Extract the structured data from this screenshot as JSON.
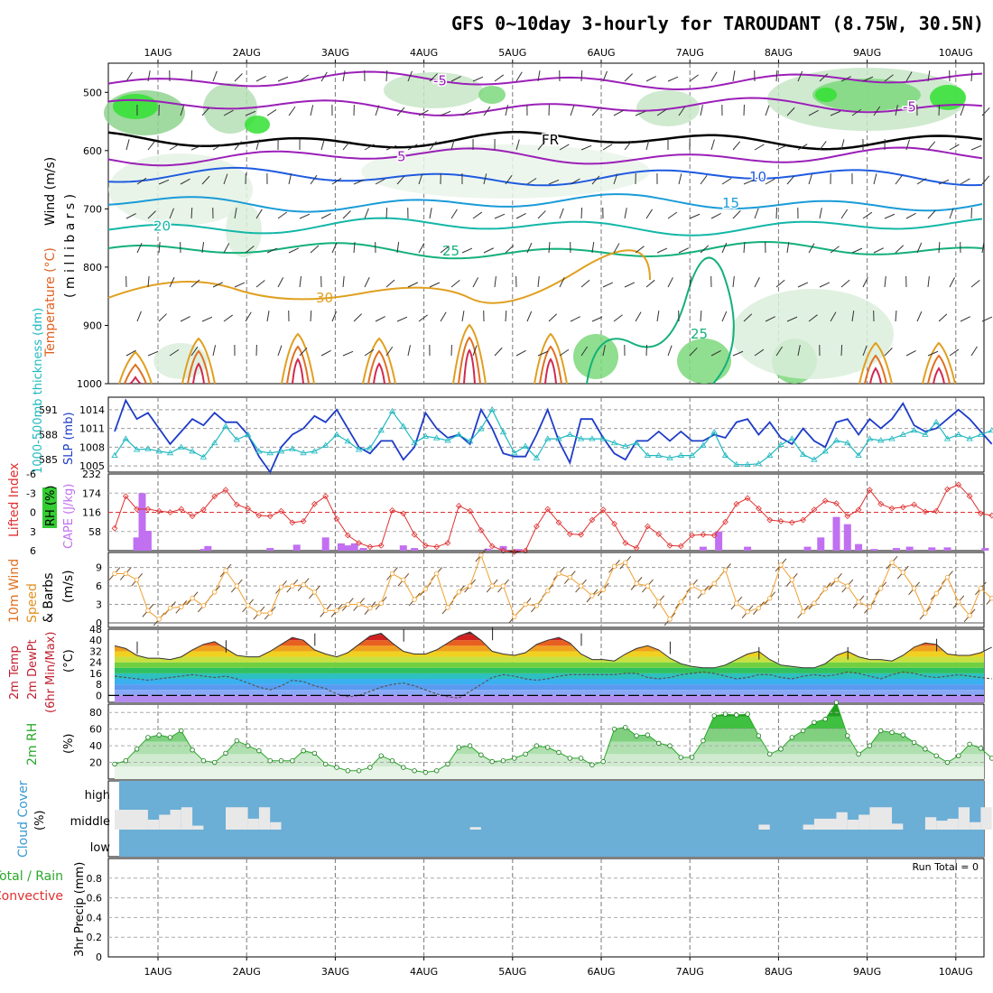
{
  "title": "GFS 0~10day 3-hourly for TAROUDANT (8.75W, 30.5N)",
  "date_labels": [
    "1AUG",
    "2AUG",
    "3AUG",
    "4AUG",
    "5AUG",
    "6AUG",
    "7AUG",
    "8AUG",
    "9AUG",
    "10AUG"
  ],
  "run_total": "Run Total = 0",
  "colors": {
    "temp_500": "#9b1fb8",
    "temp_600": "#1f5be0",
    "temp_700": "#1a9bd8",
    "temp_750": "#14b7a8",
    "temp_780": "#14b07a",
    "temp_hot": "#e0a020",
    "slp": "#1e3cc8",
    "thickness": "#1fb8c0",
    "li": "#e03030",
    "cape": "#c070f0",
    "wind": "#f0a030",
    "rh2m": "#2aa82a",
    "dew": "#888888",
    "cloud": "#6baed6"
  },
  "panel_labels": {
    "upper": {
      "wind": "Wind (m/s)",
      "temperature": "Temperature (°C)",
      "rh": "RH (%)",
      "units": "( m i l l i b a r s )"
    },
    "slp": {
      "thickness": "1000-500mb thickness (dm)",
      "slp": "SLP (mb)"
    },
    "cape": {
      "li": "Lifted Index",
      "cape": "CAPE (J/kg)"
    },
    "wind10": {
      "line1": "10m Wind",
      "line2": "Speed",
      "line3": "& Barbs",
      "units": "(m/s)"
    },
    "temp2m": {
      "line1": "2m Temp",
      "line2": "2m DewPt",
      "line3": "(6hr Min/Max)",
      "units": "(°C)"
    },
    "rh2m": {
      "line1": "2m RH",
      "units": "(%)"
    },
    "cloud": {
      "line1": "Cloud Cover",
      "units": "(%)"
    },
    "precip": {
      "line1": "Total / Rain",
      "line2": "Convective",
      "line3": "3hr Precip (mm)"
    }
  },
  "contour_labels": {
    "freezing": "FR",
    "t_minus5": "-5",
    "t5": "5",
    "t10": "10",
    "t15": "15",
    "t20": "20",
    "t25": "25",
    "t30": "30"
  },
  "axes": {
    "pressure_ticks": [
      "500",
      "600",
      "700",
      "800",
      "900",
      "1000"
    ],
    "slp_left_ticks": [
      "591",
      "588",
      "585"
    ],
    "slp_right_ticks": [
      "1014",
      "1011",
      "1008",
      "1005"
    ],
    "cape_left_ticks": [
      "-6",
      "-3",
      "0",
      "3",
      "6"
    ],
    "cape_right_ticks": [
      "232",
      "174",
      "116",
      "58"
    ],
    "wind_ticks": [
      "9",
      "6",
      "3",
      "0"
    ],
    "temp_ticks": [
      "48",
      "40",
      "32",
      "24",
      "16",
      "8",
      "0"
    ],
    "rh_ticks": [
      "80",
      "60",
      "40",
      "20"
    ],
    "cloud_ticks": [
      "high",
      "middle",
      "low"
    ],
    "precip_ticks": [
      "0.8",
      "0.6",
      "0.4",
      "0.2",
      "0"
    ]
  },
  "chart_data": [
    {
      "type": "contour",
      "title": "Temperature (°C), RH (%), Wind (m/s) vs pressure (millibars)",
      "ylim": [
        1000,
        450
      ],
      "isotherm_levels": [
        -5,
        0,
        5,
        10,
        15,
        20,
        25,
        30
      ],
      "freezing_level_mb": [
        580,
        583,
        585,
        582,
        578,
        580,
        584,
        583,
        581,
        580
      ]
    },
    {
      "type": "line",
      "title": "SLP (mb) and 1000-500mb thickness (dm)",
      "ylim_slp": [
        1004,
        1016
      ],
      "slp": [
        1010.5,
        1015.5,
        1012.5,
        1013.5,
        1011,
        1008.5,
        1010.5,
        1012.5,
        1011.5,
        1013.5,
        1012,
        1012,
        1010,
        1006.5,
        1004,
        1008,
        1010,
        1011,
        1013,
        1012,
        1014,
        1011,
        1008,
        1007,
        1009,
        1009,
        1006,
        1008,
        1013.5,
        1011,
        1009.5,
        1010,
        1008.5,
        1014,
        1011,
        1007,
        1006.5,
        1006.5,
        1010,
        1014,
        1009,
        1005.5,
        1012.5,
        1012.5,
        1009.5,
        1007,
        1006,
        1009,
        1009,
        1010.5,
        1009,
        1010.5,
        1009,
        1009,
        1010,
        1009.5,
        1012,
        1012.5,
        1010,
        1012,
        1009.5,
        1008.5,
        1011,
        1009,
        1008,
        1012,
        1012.5,
        1010,
        1012.5,
        1011,
        1012.5,
        1015,
        1011.5,
        1010.5,
        1011,
        1012.5,
        1014,
        1012.5,
        1010.5,
        1008.5
      ],
      "thickness_dm": [
        585.5,
        587.5,
        586.2,
        586.3,
        586,
        585.8,
        586.5,
        586,
        585.3,
        587,
        589,
        587.4,
        588,
        586,
        585.8,
        586,
        586.3,
        585.8,
        586,
        586.7,
        588,
        587.2,
        586.2,
        586.4,
        588.5,
        590.8,
        589,
        587,
        587.8,
        587.6,
        587.3,
        588,
        587.2,
        588.7,
        591,
        588.3,
        585.8,
        586.6,
        585.2,
        587.5,
        587.5,
        588,
        587.5,
        587.5,
        587.5,
        587,
        586.6,
        587,
        585.5,
        585.5,
        585.2,
        585.5,
        585.5,
        586.7,
        588.3,
        585.5,
        584.4,
        584.4,
        584.5,
        585.5,
        586.8,
        587.5,
        585.6,
        585,
        586,
        587.3,
        587,
        585.5,
        587.5,
        587.3,
        587.5,
        588,
        588.5,
        588,
        589.5,
        587.5,
        588,
        587.5,
        588,
        588.5
      ]
    },
    {
      "type": "bar+line",
      "title": "Lifted Index and CAPE (J/kg)",
      "cape_bars": [
        [
          0.5,
          40
        ],
        [
          0.62,
          174
        ],
        [
          0.75,
          60
        ],
        [
          2.0,
          5
        ],
        [
          2.1,
          14
        ],
        [
          3.5,
          8
        ],
        [
          4.1,
          18
        ],
        [
          4.75,
          40
        ],
        [
          5.1,
          22
        ],
        [
          5.25,
          16
        ],
        [
          5.4,
          22
        ],
        [
          5.6,
          8
        ],
        [
          6.5,
          16
        ],
        [
          6.75,
          8
        ],
        [
          8.4,
          6
        ],
        [
          8.75,
          14
        ],
        [
          9.1,
          5
        ],
        [
          13.25,
          12
        ],
        [
          13.6,
          58
        ],
        [
          14.25,
          12
        ],
        [
          15.6,
          12
        ],
        [
          15.9,
          40
        ],
        [
          16.25,
          102
        ],
        [
          16.5,
          80
        ],
        [
          16.75,
          20
        ],
        [
          17.1,
          5
        ],
        [
          17.6,
          8
        ],
        [
          17.9,
          12
        ],
        [
          18.4,
          10
        ],
        [
          18.75,
          10
        ],
        [
          19.6,
          8
        ],
        [
          19.95,
          118
        ],
        [
          20.1,
          174
        ],
        [
          20.25,
          225
        ],
        [
          20.55,
          58
        ],
        [
          20.9,
          10
        ]
      ],
      "lifted_index": [
        2.5,
        -2.5,
        -0.5,
        -0.5,
        -0.2,
        0,
        -0.5,
        0.6,
        -0.4,
        -2.5,
        -3.5,
        -1.2,
        -0.6,
        0.5,
        0.6,
        -0.2,
        1.6,
        1.4,
        -1.3,
        -2.5,
        1.0,
        3.6,
        4.8,
        5.4,
        5.2,
        -0.3,
        0.2,
        3.5,
        5.2,
        5.4,
        4.8,
        -1.0,
        -0.2,
        2.8,
        5.3,
        6.0,
        6.2,
        6.0,
        2.2,
        -0.5,
        1.6,
        3.4,
        3.5,
        1.2,
        -0.4,
        1.8,
        4.8,
        5.6,
        2.2,
        3.4,
        5.2,
        5.3,
        3.6,
        3.5,
        3.6,
        1.5,
        -1.3,
        -2.2,
        -0.6,
        1.2,
        1.4,
        1.6,
        1.2,
        -0.4,
        -1.8,
        -1.4,
        0.6,
        -0.4,
        -3.5,
        -1.3,
        -0.6,
        -0.8,
        -1.2,
        -0.1,
        -0.2,
        -3.6,
        -4.3,
        -2.5,
        0.2,
        0.5
      ]
    },
    {
      "type": "line",
      "title": "10m Wind Speed & Barbs (m/s)",
      "ylim": [
        0,
        11
      ],
      "speed": [
        8,
        8,
        7,
        2,
        0.6,
        2.4,
        2.6,
        4,
        2.8,
        5,
        8.5,
        6,
        2.8,
        1.6,
        1.6,
        5.8,
        6,
        6.2,
        5,
        2,
        2,
        3,
        3,
        2.4,
        3.2,
        8,
        7,
        3.8,
        5.5,
        8,
        2.5,
        5,
        6,
        11,
        6,
        6,
        1,
        3,
        2.8,
        5.2,
        8,
        7.4,
        6,
        4.4,
        5.4,
        9.2,
        9.8,
        6.4,
        6,
        3.4,
        0.6,
        3.4,
        6,
        5,
        6.4,
        8.6,
        3.2,
        1.8,
        2.4,
        4,
        9.4,
        7,
        1.8,
        3.2,
        5.5,
        7,
        6,
        3.4,
        2.6,
        5.6,
        9.8,
        8.2,
        5.6,
        1.6,
        4.8,
        7.4,
        3.4,
        1.2,
        5.6,
        4
      ]
    },
    {
      "type": "area",
      "title": "2m Temp, 2m DewPt, 6hr Min/Max (°C)",
      "ylim": [
        -5,
        48
      ],
      "temp": [
        36,
        34,
        29,
        27,
        27,
        26,
        28,
        33,
        37,
        39,
        34,
        29,
        28,
        28,
        32,
        37,
        42,
        40,
        33,
        30,
        28,
        31,
        37,
        43,
        45,
        38,
        32,
        30,
        30,
        33,
        38,
        43,
        46,
        40,
        32,
        30,
        29,
        31,
        37,
        40,
        42,
        38,
        30,
        26,
        26,
        25,
        30,
        34,
        36,
        33,
        27,
        23,
        21,
        20,
        20,
        22,
        26,
        30,
        32,
        26,
        22,
        21,
        20,
        20,
        23,
        29,
        32,
        28,
        26,
        26,
        25,
        29,
        35,
        38,
        37,
        30,
        29,
        29,
        31,
        35
      ],
      "dewpoint": [
        14,
        13,
        12,
        11,
        12,
        13,
        14,
        15,
        14,
        13,
        14,
        12,
        9,
        6,
        4,
        7,
        11,
        10,
        7,
        5,
        1,
        -1,
        0,
        3,
        6,
        8,
        9,
        7,
        4,
        1,
        -1,
        -2,
        3,
        8,
        13,
        15,
        14,
        12,
        11,
        12,
        14,
        15,
        15,
        15,
        15,
        15,
        16,
        16,
        13,
        12,
        13,
        15,
        16,
        17,
        16,
        14,
        12,
        13,
        15,
        15,
        13,
        12,
        14,
        15,
        14,
        15,
        17,
        16,
        14,
        12,
        15,
        17,
        16,
        14,
        13,
        14,
        15,
        14,
        13,
        12
      ]
    },
    {
      "type": "area",
      "title": "2m RH (%)",
      "ylim": [
        0,
        90
      ],
      "rh": [
        18,
        22,
        36,
        50,
        53,
        50,
        58,
        35,
        22,
        20,
        31,
        46,
        40,
        34,
        22,
        22,
        22,
        34,
        31,
        18,
        14,
        10,
        10,
        14,
        28,
        22,
        14,
        10,
        8,
        10,
        18,
        38,
        40,
        29,
        21,
        22,
        25,
        30,
        40,
        38,
        32,
        25,
        25,
        17,
        21,
        60,
        62,
        52,
        53,
        43,
        40,
        26,
        26,
        46,
        76,
        78,
        77,
        78,
        52,
        30,
        36,
        50,
        58,
        68,
        72,
        92,
        52,
        30,
        40,
        58,
        56,
        53,
        44,
        36,
        28,
        20,
        28,
        42,
        37,
        25
      ]
    },
    {
      "type": "bar",
      "title": "Cloud Cover (%) — high / middle / low",
      "levels": [
        "high",
        "middle",
        "low"
      ],
      "middle_cover_blocks": [
        [
          0,
          3,
          40
        ],
        [
          3,
          4,
          20
        ],
        [
          4,
          5,
          30
        ],
        [
          5,
          6,
          40
        ],
        [
          6,
          7,
          45
        ],
        [
          7,
          8,
          8
        ],
        [
          10,
          12,
          45
        ],
        [
          12,
          13,
          22
        ],
        [
          13,
          14,
          45
        ],
        [
          14,
          15,
          15
        ],
        [
          32,
          33,
          5
        ],
        [
          58,
          59,
          10
        ],
        [
          62,
          63,
          10
        ],
        [
          63,
          65,
          22
        ],
        [
          65,
          66,
          35
        ],
        [
          66,
          67,
          20
        ],
        [
          67,
          68,
          30
        ],
        [
          68,
          70,
          45
        ],
        [
          70,
          71,
          12
        ],
        [
          73,
          74,
          25
        ],
        [
          74,
          75,
          18
        ],
        [
          75,
          76,
          22
        ],
        [
          76,
          77,
          45
        ],
        [
          77,
          78,
          15
        ],
        [
          78,
          79,
          45
        ]
      ]
    },
    {
      "type": "bar",
      "title": "3hr Precip (mm) — Total / Rain, Convective",
      "ylim": [
        0,
        1
      ],
      "total_mm": 0
    }
  ]
}
